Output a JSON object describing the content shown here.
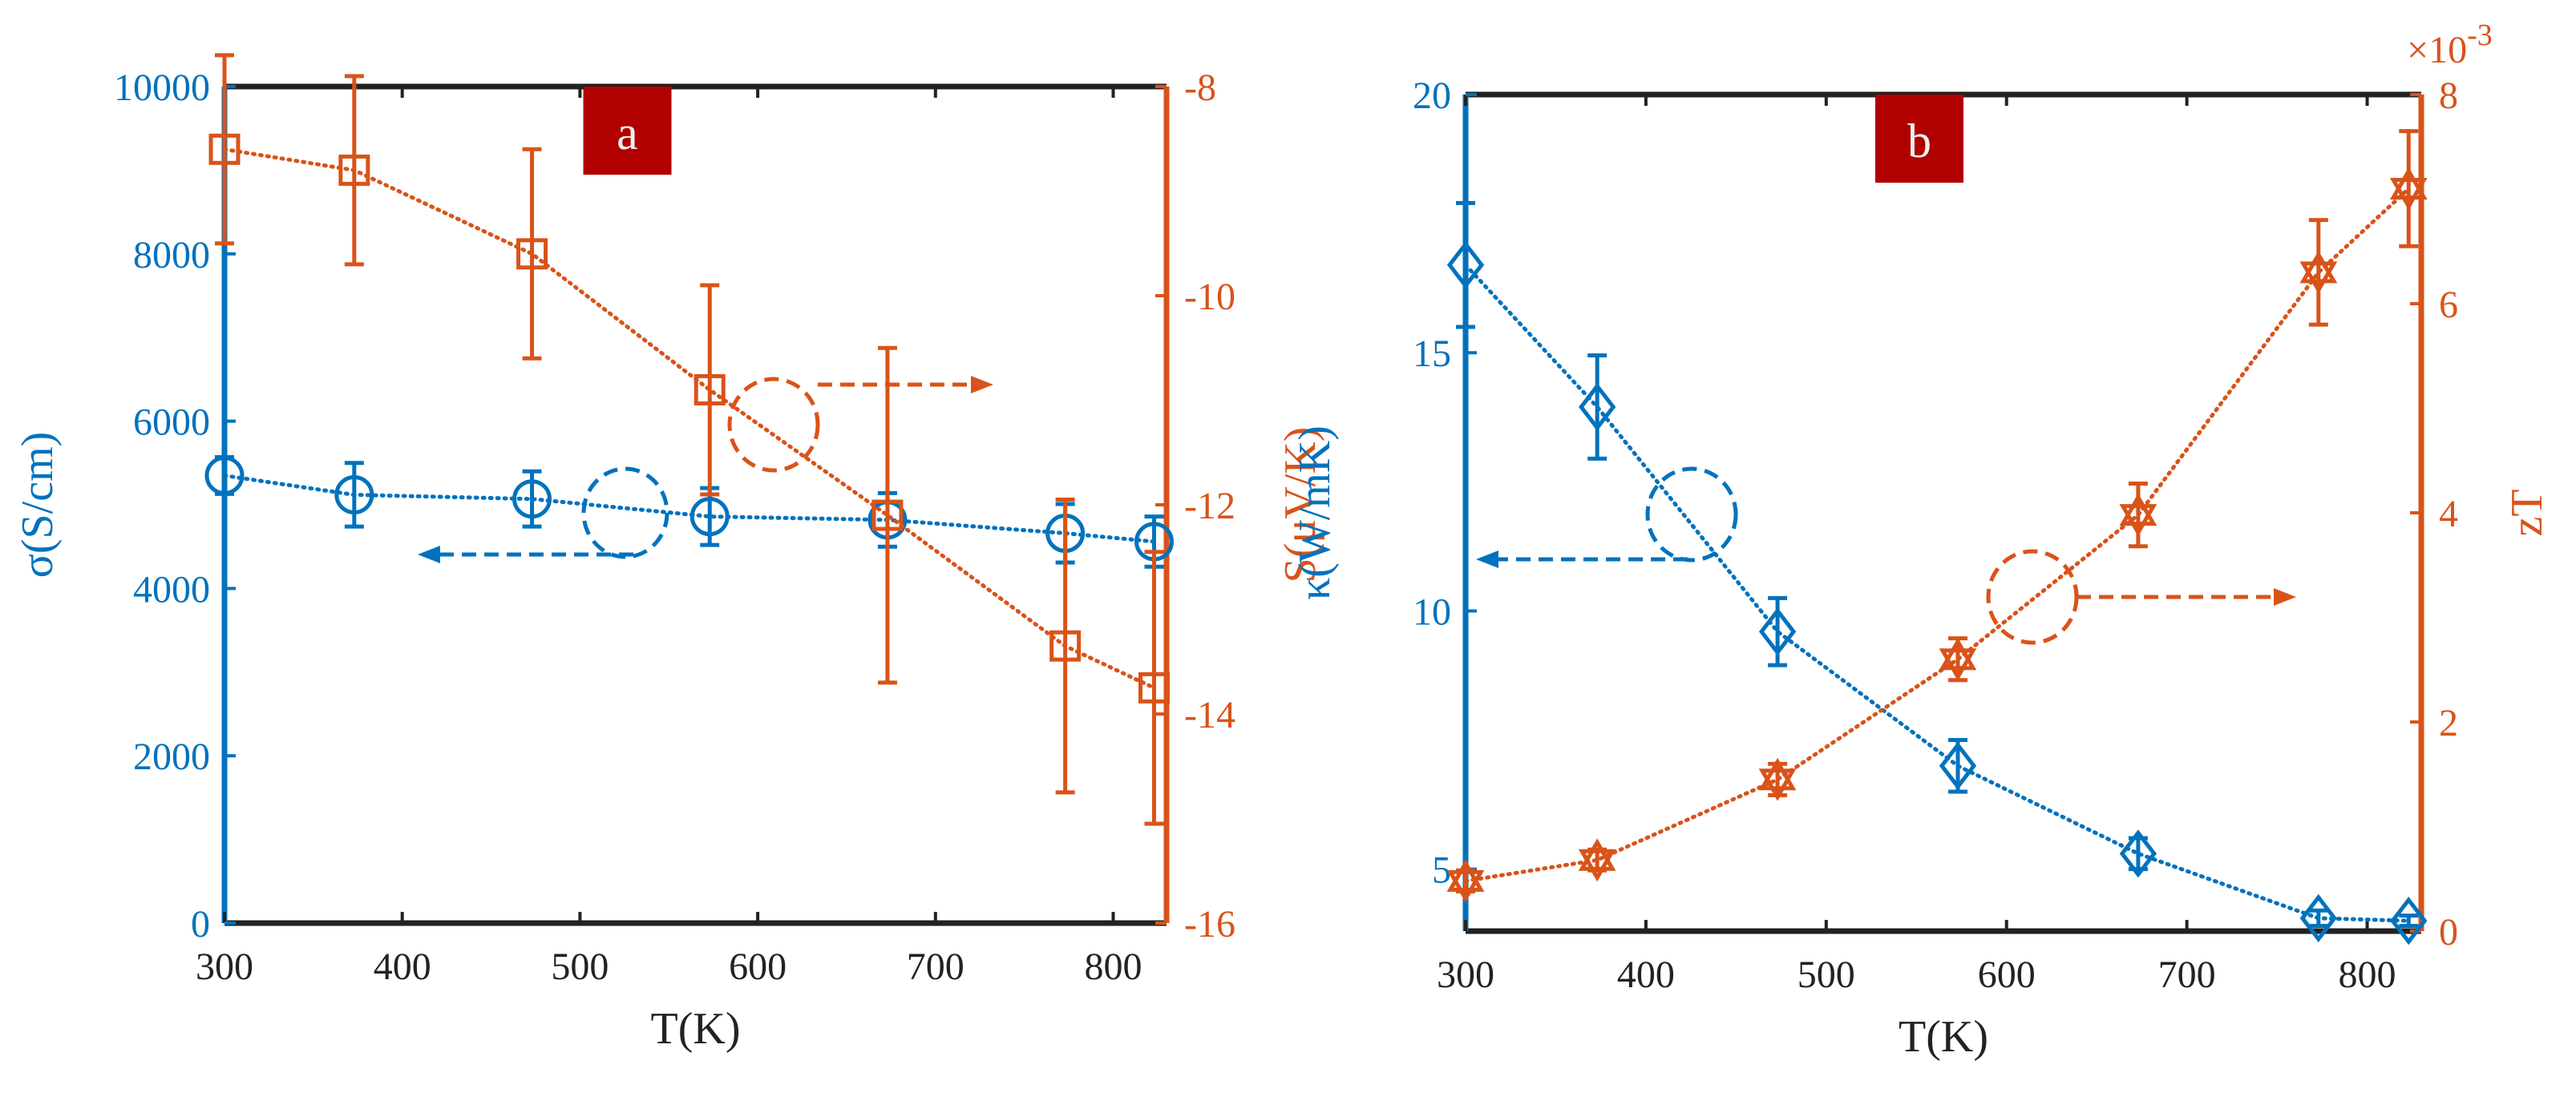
{
  "colors": {
    "blue": "#0072BD",
    "orange": "#D95319",
    "panel_box": "#B00000",
    "axis": "#222222"
  },
  "chart_data": [
    {
      "type": "line",
      "panel_label": "a",
      "xlabel": "T(K)",
      "xlim": [
        300,
        830
      ],
      "xticks": [
        300,
        400,
        500,
        600,
        700,
        800
      ],
      "ylabel_left": "σ(S/cm)",
      "ylim_left": [
        0,
        10000
      ],
      "yticks_left": [
        0,
        2000,
        4000,
        6000,
        8000,
        10000
      ],
      "ylabel_right": "S(μV/K)",
      "ylim_right": [
        -16,
        -8
      ],
      "yticks_right": [
        -16,
        -14,
        -12,
        -10,
        -8
      ],
      "series": [
        {
          "name": "σ",
          "axis": "left",
          "color": "#0072BD",
          "marker": "circle",
          "x": [
            300,
            373,
            473,
            573,
            673,
            773,
            823
          ],
          "values": [
            5350,
            5120,
            5070,
            4860,
            4820,
            4660,
            4560
          ],
          "err": [
            220,
            380,
            330,
            340,
            320,
            350,
            300
          ]
        },
        {
          "name": "S",
          "axis": "right",
          "color": "#D95319",
          "marker": "square",
          "x": [
            300,
            373,
            473,
            573,
            673,
            773,
            823
          ],
          "values": [
            -8.6,
            -8.8,
            -9.6,
            -10.9,
            -12.1,
            -13.35,
            -13.75
          ],
          "err": [
            0.9,
            0.9,
            1.0,
            1.0,
            1.6,
            1.4,
            1.3
          ]
        }
      ],
      "annotations": [
        {
          "type": "ellipse-arrow",
          "target": "left",
          "color": "#0072BD"
        },
        {
          "type": "ellipse-arrow",
          "target": "right",
          "color": "#D95319"
        }
      ]
    },
    {
      "type": "line",
      "panel_label": "b",
      "xlabel": "T(K)",
      "xlim": [
        300,
        830
      ],
      "xticks": [
        300,
        400,
        500,
        600,
        700,
        800
      ],
      "ylabel_left": "κ(W/mK)",
      "ylim_left": [
        3.8,
        20
      ],
      "yticks_left": [
        5,
        10,
        15,
        20
      ],
      "ylabel_right": "zT",
      "ylim_right": [
        0,
        8
      ],
      "yticks_right": [
        0,
        2,
        4,
        6,
        8
      ],
      "right_multiplier": "×10",
      "right_multiplier_exp": "-3",
      "series": [
        {
          "name": "κ",
          "axis": "left",
          "color": "#0072BD",
          "marker": "diamond",
          "x": [
            300,
            373,
            473,
            573,
            673,
            773,
            823
          ],
          "values": [
            16.7,
            13.95,
            9.6,
            7.0,
            5.3,
            4.05,
            4.0
          ],
          "err": [
            1.2,
            1.0,
            0.65,
            0.5,
            0.3,
            0.15,
            0.1
          ]
        },
        {
          "name": "zT",
          "axis": "right",
          "color": "#D95319",
          "marker": "hexagram",
          "x": [
            300,
            373,
            473,
            573,
            673,
            773,
            823
          ],
          "values": [
            0.48,
            0.68,
            1.45,
            2.6,
            3.98,
            6.3,
            7.1
          ],
          "err": [
            0.1,
            0.1,
            0.15,
            0.2,
            0.3,
            0.5,
            0.55
          ]
        }
      ],
      "annotations": [
        {
          "type": "ellipse-arrow",
          "target": "left",
          "color": "#0072BD"
        },
        {
          "type": "ellipse-arrow",
          "target": "right",
          "color": "#D95319"
        }
      ]
    }
  ]
}
